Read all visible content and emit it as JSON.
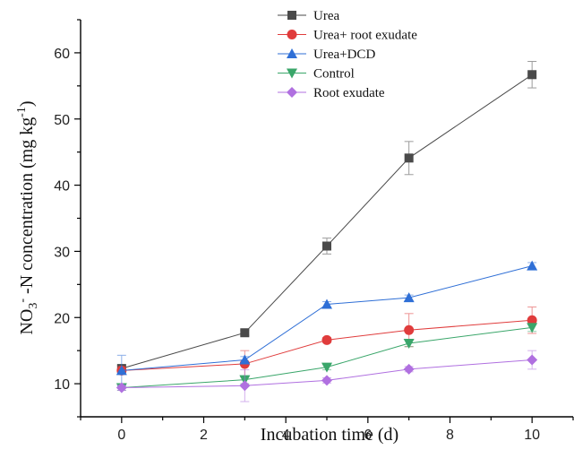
{
  "chart_data": {
    "type": "line",
    "title": "",
    "xlabel": "Incubation time (d)",
    "ylabel": {
      "main": "NO",
      "sub": "3",
      "sup": "-",
      "rest": " -N concentration (mg kg",
      "rest_sup": "-1",
      "close": ")"
    },
    "xlim": [
      -1,
      11
    ],
    "ylim": [
      5,
      65
    ],
    "x_ticks": [
      0,
      2,
      4,
      6,
      8,
      10
    ],
    "y_ticks": [
      10,
      20,
      30,
      40,
      50,
      60
    ],
    "legend_position": "top-center",
    "grid": false,
    "series": [
      {
        "name": "Urea",
        "marker": "square",
        "color": "#4a4a4a",
        "points": [
          {
            "x": 0,
            "y": 12.3,
            "err": 0.5
          },
          {
            "x": 3,
            "y": 17.7,
            "err": 0.4
          },
          {
            "x": 5,
            "y": 30.8,
            "err": 1.2
          },
          {
            "x": 7,
            "y": 44.1,
            "err": 2.5
          },
          {
            "x": 10,
            "y": 56.7,
            "err": 2.0
          }
        ]
      },
      {
        "name": "Urea+ root exudate",
        "marker": "circle",
        "color": "#e03c3c",
        "points": [
          {
            "x": 0,
            "y": 12.0,
            "err": 0.6
          },
          {
            "x": 3,
            "y": 13.0,
            "err": 2.0
          },
          {
            "x": 5,
            "y": 16.6,
            "err": 0.4
          },
          {
            "x": 7,
            "y": 18.1,
            "err": 2.5
          },
          {
            "x": 10,
            "y": 19.6,
            "err": 2.0
          }
        ]
      },
      {
        "name": "Urea+DCD",
        "marker": "triangle-up",
        "color": "#2f6fd6",
        "points": [
          {
            "x": 0,
            "y": 12.0,
            "err": 2.3
          },
          {
            "x": 3,
            "y": 13.6,
            "err": 0.5
          },
          {
            "x": 5,
            "y": 22.0,
            "err": 0.4
          },
          {
            "x": 7,
            "y": 23.0,
            "err": 0.4
          },
          {
            "x": 10,
            "y": 27.8,
            "err": 0.5
          }
        ]
      },
      {
        "name": "Control",
        "marker": "triangle-down",
        "color": "#3aa66a",
        "points": [
          {
            "x": 0,
            "y": 9.4,
            "err": 0.4
          },
          {
            "x": 3,
            "y": 10.6,
            "err": 0.6
          },
          {
            "x": 5,
            "y": 12.5,
            "err": 0.4
          },
          {
            "x": 7,
            "y": 16.1,
            "err": 0.5
          },
          {
            "x": 10,
            "y": 18.5,
            "err": 0.6
          }
        ]
      },
      {
        "name": "Root exudate",
        "marker": "diamond",
        "color": "#b070e0",
        "points": [
          {
            "x": 0,
            "y": 9.4,
            "err": 0.4
          },
          {
            "x": 3,
            "y": 9.7,
            "err": 2.4
          },
          {
            "x": 5,
            "y": 10.5,
            "err": 0.4
          },
          {
            "x": 7,
            "y": 12.2,
            "err": 0.4
          },
          {
            "x": 10,
            "y": 13.6,
            "err": 1.4
          }
        ]
      }
    ]
  }
}
